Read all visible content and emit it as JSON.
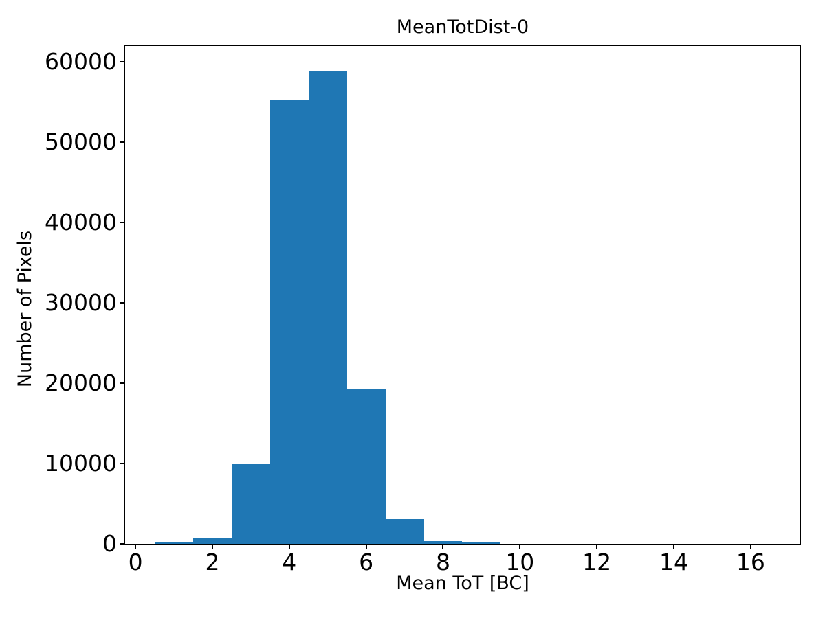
{
  "chart_data": {
    "type": "bar",
    "subtype": "histogram",
    "title": "MeanTotDist-0",
    "xlabel": "Mean ToT [BC]",
    "ylabel": "Number of Pixels",
    "bar_color": "#1f77b4",
    "axis_color": "#000000",
    "background_color": "#ffffff",
    "bin_edges": [
      0.5,
      1.5,
      2.5,
      3.5,
      4.5,
      5.5,
      6.5,
      7.5,
      8.5,
      9.5
    ],
    "counts": [
      170,
      700,
      10000,
      55300,
      58900,
      19200,
      3100,
      350,
      130
    ],
    "xlim": [
      -0.27,
      17.29
    ],
    "ylim": [
      0,
      61950
    ],
    "xticks": [
      0,
      2,
      4,
      6,
      8,
      10,
      12,
      14,
      16
    ],
    "yticks": [
      0,
      10000,
      20000,
      30000,
      40000,
      50000,
      60000
    ],
    "grid": false,
    "legend": null
  }
}
